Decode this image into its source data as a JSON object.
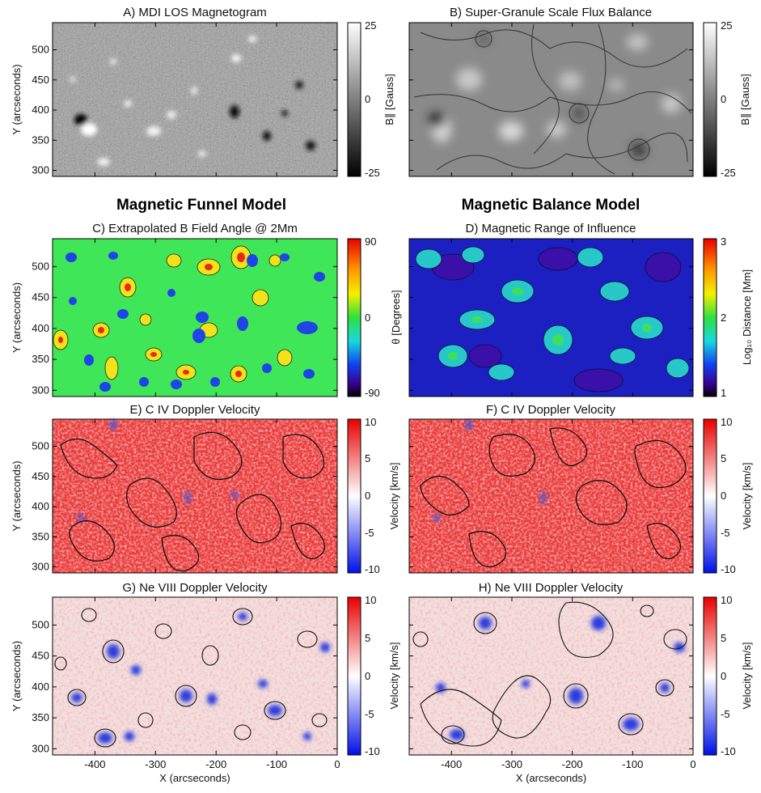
{
  "sections": [
    "Magnetic Funnel Model",
    "Magnetic Balance Model"
  ],
  "x_axis": {
    "label": "X (arcseconds)",
    "ticks": [
      "-400",
      "-300",
      "-200",
      "-100",
      "0"
    ]
  },
  "y_axis": {
    "label": "Y (arcseconds)",
    "ticks": [
      "500",
      "450",
      "400",
      "350",
      "300"
    ]
  },
  "panels": [
    {
      "title": "A) MDI LOS Magnetogram",
      "colormap": "gray",
      "colorbar": {
        "label": "B∥ [Gauss]",
        "ticks": [
          "25",
          "0",
          "-25"
        ]
      }
    },
    {
      "title": "B) Super-Granule Scale Flux Balance",
      "colormap": "gray",
      "colorbar": {
        "label": "B∥ [Gauss]",
        "ticks": [
          "25",
          "0",
          "-25"
        ]
      }
    },
    {
      "title": "C) Extrapolated B Field Angle @ 2Mm",
      "colormap": "rainbow",
      "colorbar": {
        "label": "θ [Degrees]",
        "ticks": [
          "90",
          "0",
          "-90"
        ]
      }
    },
    {
      "title": "D) Magnetic Range of Influence",
      "colormap": "rainbow",
      "colorbar": {
        "label": "Log₁₀ Distance [Mm]",
        "ticks": [
          "3",
          "2",
          "1"
        ]
      }
    },
    {
      "title": "E) C IV Doppler Velocity",
      "colormap": "bwr",
      "colorbar": {
        "label": "Velocity [km/s]",
        "ticks": [
          "10",
          "5",
          "0",
          "-5",
          "-10"
        ]
      }
    },
    {
      "title": "F) C IV Doppler Velocity",
      "colormap": "bwr",
      "colorbar": {
        "label": "Velocity [km/s]",
        "ticks": [
          "10",
          "5",
          "0",
          "-5",
          "-10"
        ]
      }
    },
    {
      "title": "G) Ne VIII Doppler Velocity",
      "colormap": "bwr",
      "colorbar": {
        "label": "Velocity [km/s]",
        "ticks": [
          "10",
          "5",
          "0",
          "-5",
          "-10"
        ]
      }
    },
    {
      "title": "H) Ne VIII Doppler Velocity",
      "colormap": "bwr",
      "colorbar": {
        "label": "Velocity [km/s]",
        "ticks": [
          "10",
          "5",
          "0",
          "-5",
          "-10"
        ]
      }
    }
  ],
  "colors": {
    "gray_light": "#f4f4f4",
    "gray_dark": "#0a0a0a",
    "gray_mid": "#8a8a8a",
    "green_bg": "#33e650",
    "blue_spot": "#1f45e6",
    "yellow_spot": "#f2e21a",
    "red_spot": "#e6281e",
    "navy_bg": "#1a22c8",
    "teal_patch": "#2ad2c8",
    "red_bg": "#e8353a",
    "white_patch": "#ffffff",
    "blue_patch": "#3050e0"
  }
}
